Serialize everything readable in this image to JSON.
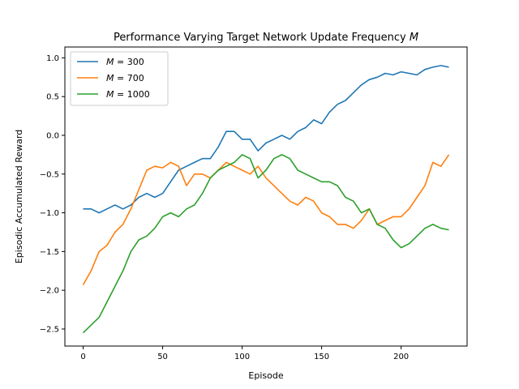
{
  "chart_data": {
    "type": "line",
    "title": "Performance Varying Target Network Update Frequency M",
    "xlabel": "Episode",
    "ylabel": "Episodic Accumulated Reward",
    "xlim": [
      -11.5,
      241.5
    ],
    "ylim": [
      -2.72,
      1.14
    ],
    "xticks": [
      0,
      50,
      100,
      150,
      200
    ],
    "yticks": [
      -2.5,
      -2.0,
      -1.5,
      -1.0,
      -0.5,
      0.0,
      0.5,
      1.0
    ],
    "xtick_labels": [
      "0",
      "50",
      "100",
      "150",
      "200"
    ],
    "ytick_labels": [
      "−2.5",
      "−2.0",
      "−1.5",
      "−1.0",
      "−0.5",
      "0.0",
      "0.5",
      "1.0"
    ],
    "grid": false,
    "legend_position": "top-left",
    "series": [
      {
        "name": "M = 300",
        "legend_var": "M",
        "legend_rest": " = 300",
        "color": "#1f77b4",
        "x": [
          0,
          5,
          10,
          15,
          20,
          25,
          30,
          35,
          40,
          45,
          50,
          55,
          60,
          65,
          70,
          75,
          80,
          85,
          90,
          95,
          100,
          105,
          110,
          115,
          120,
          125,
          130,
          135,
          140,
          145,
          150,
          155,
          160,
          165,
          170,
          175,
          180,
          185,
          190,
          195,
          200,
          205,
          210,
          215,
          220,
          225,
          230
        ],
        "y": [
          -0.95,
          -0.95,
          -1.0,
          -0.95,
          -0.9,
          -0.95,
          -0.9,
          -0.8,
          -0.75,
          -0.8,
          -0.75,
          -0.6,
          -0.45,
          -0.4,
          -0.35,
          -0.3,
          -0.3,
          -0.15,
          0.05,
          0.05,
          -0.05,
          -0.05,
          -0.2,
          -0.1,
          -0.05,
          0.0,
          -0.05,
          0.05,
          0.1,
          0.2,
          0.15,
          0.3,
          0.4,
          0.45,
          0.55,
          0.65,
          0.72,
          0.75,
          0.8,
          0.78,
          0.82,
          0.8,
          0.78,
          0.85,
          0.88,
          0.9,
          0.88
        ]
      },
      {
        "name": "M = 700",
        "legend_var": "M",
        "legend_rest": " = 700",
        "color": "#ff7f0e",
        "x": [
          0,
          5,
          10,
          15,
          20,
          25,
          30,
          35,
          40,
          45,
          50,
          55,
          60,
          65,
          70,
          75,
          80,
          85,
          90,
          95,
          100,
          105,
          110,
          115,
          120,
          125,
          130,
          135,
          140,
          145,
          150,
          155,
          160,
          165,
          170,
          175,
          180,
          185,
          190,
          195,
          200,
          205,
          210,
          215,
          220,
          225,
          230
        ],
        "y": [
          -1.93,
          -1.75,
          -1.5,
          -1.42,
          -1.25,
          -1.15,
          -0.95,
          -0.7,
          -0.45,
          -0.4,
          -0.42,
          -0.35,
          -0.4,
          -0.65,
          -0.5,
          -0.5,
          -0.55,
          -0.45,
          -0.35,
          -0.4,
          -0.45,
          -0.5,
          -0.4,
          -0.55,
          -0.65,
          -0.75,
          -0.85,
          -0.9,
          -0.8,
          -0.85,
          -1.0,
          -1.05,
          -1.15,
          -1.15,
          -1.2,
          -1.1,
          -0.95,
          -1.15,
          -1.1,
          -1.05,
          -1.05,
          -0.95,
          -0.8,
          -0.65,
          -0.35,
          -0.4,
          -0.25
        ]
      },
      {
        "name": "M = 1000",
        "legend_var": "M",
        "legend_rest": " = 1000",
        "color": "#2ca02c",
        "x": [
          0,
          5,
          10,
          15,
          20,
          25,
          30,
          35,
          40,
          45,
          50,
          55,
          60,
          65,
          70,
          75,
          80,
          85,
          90,
          95,
          100,
          105,
          110,
          115,
          120,
          125,
          130,
          135,
          140,
          145,
          150,
          155,
          160,
          165,
          170,
          175,
          180,
          185,
          190,
          195,
          200,
          205,
          210,
          215,
          220,
          225,
          230
        ],
        "y": [
          -2.55,
          -2.45,
          -2.35,
          -2.15,
          -1.95,
          -1.75,
          -1.5,
          -1.35,
          -1.3,
          -1.2,
          -1.05,
          -1.0,
          -1.05,
          -0.95,
          -0.9,
          -0.75,
          -0.55,
          -0.45,
          -0.4,
          -0.35,
          -0.25,
          -0.3,
          -0.55,
          -0.45,
          -0.3,
          -0.25,
          -0.3,
          -0.45,
          -0.5,
          -0.55,
          -0.6,
          -0.6,
          -0.65,
          -0.8,
          -0.85,
          -1.0,
          -0.95,
          -1.15,
          -1.2,
          -1.35,
          -1.45,
          -1.4,
          -1.3,
          -1.2,
          -1.15,
          -1.2,
          -1.22
        ]
      }
    ]
  }
}
